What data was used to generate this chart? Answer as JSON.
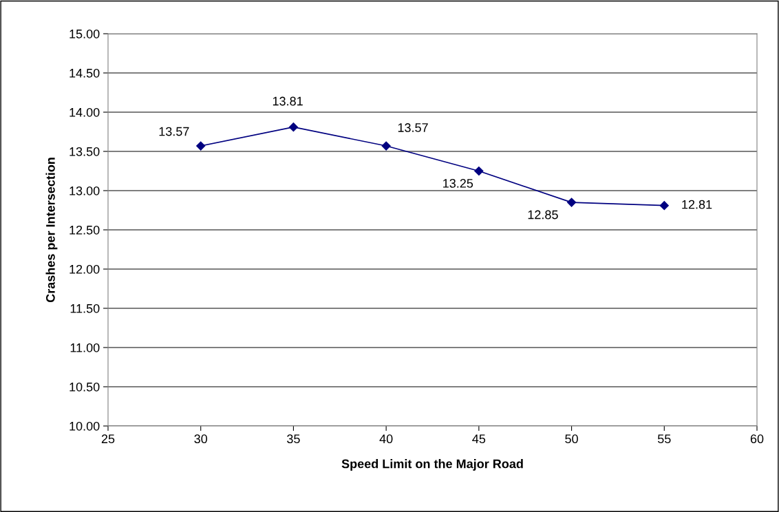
{
  "chart_data": {
    "type": "line",
    "xlabel": "Speed Limit on the Major Road",
    "ylabel": "Crashes per Intersection",
    "x": [
      30,
      35,
      40,
      45,
      50,
      55
    ],
    "series": [
      {
        "color": "#000080",
        "values": [
          13.57,
          13.81,
          13.57,
          13.25,
          12.85,
          12.81
        ]
      }
    ],
    "xlim": [
      25,
      60
    ],
    "xticks": [
      25,
      30,
      35,
      40,
      45,
      50,
      55,
      60
    ],
    "ylim": [
      10,
      15
    ],
    "yticks": [
      {
        "value": 10,
        "label": "10.00"
      },
      {
        "value": 10.5,
        "label": "10.50"
      },
      {
        "value": 11,
        "label": "11.00"
      },
      {
        "value": 11.5,
        "label": "11.50"
      },
      {
        "value": 12,
        "label": "12.00"
      },
      {
        "value": 12.5,
        "label": "12.50"
      },
      {
        "value": 13,
        "label": "13.00"
      },
      {
        "value": 13.5,
        "label": "13.50"
      },
      {
        "value": 14,
        "label": "14.00"
      },
      {
        "value": 14.5,
        "label": "14.50"
      },
      {
        "value": 15,
        "label": "15.00"
      }
    ],
    "grid": "y",
    "marker": "diamond",
    "line_style": "solid",
    "data_labels": true
  }
}
